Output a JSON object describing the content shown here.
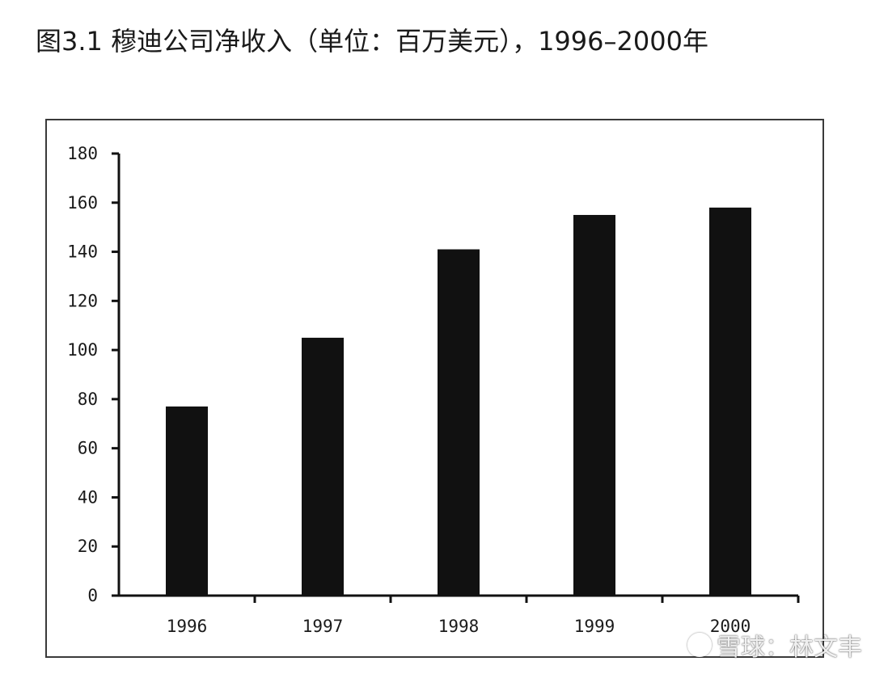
{
  "title": "图3.1 穆迪公司净收入（单位：百万美元），1996–2000年",
  "watermark": {
    "text": "雪球：林文丰",
    "icon": "snowball-logo-icon"
  },
  "colors": {
    "bar": "#111111",
    "axis": "#111111",
    "frame": "#3a3a3a"
  },
  "chart_data": {
    "type": "bar",
    "title": "图3.1 穆迪公司净收入（单位：百万美元），1996–2000年",
    "categories": [
      "1996",
      "1997",
      "1998",
      "1999",
      "2000"
    ],
    "values": [
      77,
      105,
      141,
      155,
      158
    ],
    "ylim": [
      0,
      180
    ],
    "yticks": [
      0,
      20,
      40,
      60,
      80,
      100,
      120,
      140,
      160,
      180
    ],
    "xlabel": "",
    "ylabel": "",
    "grid": false,
    "legend": "none"
  }
}
